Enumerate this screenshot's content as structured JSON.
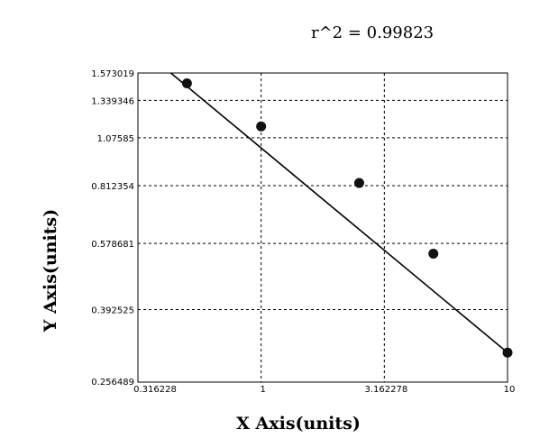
{
  "chart_data": {
    "type": "scatter",
    "annotation": "r^2  =  0.99823",
    "xlabel": "X Axis(units)",
    "ylabel": "Y Axis(units)",
    "x_scale": "log",
    "y_scale": "log",
    "xlim": [
      0.316228,
      10
    ],
    "ylim": [
      0.256489,
      1.573019
    ],
    "x_ticks": [
      "0.316228",
      "1",
      "3.162278",
      "10"
    ],
    "y_ticks": [
      "0.256489",
      "0.392525",
      "0.578681",
      "0.812354",
      "1.07585",
      "1.339346",
      "1.573019"
    ],
    "grid": true,
    "points": [
      {
        "x": 0.5,
        "y": 1.48
      },
      {
        "x": 1.0,
        "y": 1.15
      },
      {
        "x": 2.5,
        "y": 0.825
      },
      {
        "x": 5.0,
        "y": 0.545
      },
      {
        "x": 10.0,
        "y": 0.305
      }
    ],
    "fit_line": {
      "x": [
        0.43,
        10.0
      ],
      "y": [
        1.573,
        0.305
      ]
    }
  }
}
